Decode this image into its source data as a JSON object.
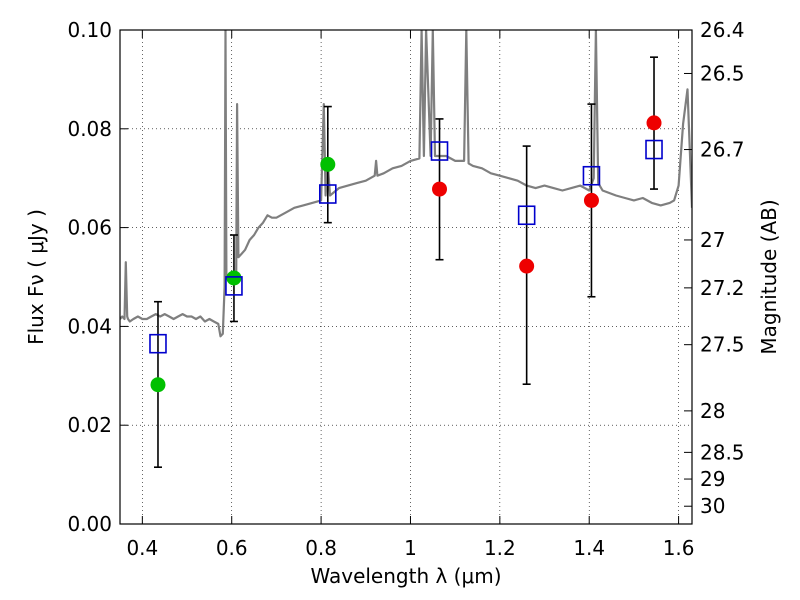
{
  "chart_data": {
    "type": "scatter",
    "title": "",
    "xlabel": "Wavelength  λ (μm)",
    "ylabel": "Flux  Fν  ( μJy )",
    "ylabel_right": "Magnitude (AB)",
    "xlim": [
      0.35,
      1.63
    ],
    "ylim": [
      0.0,
      0.1
    ],
    "grid": true,
    "grid_style": "dotted",
    "x_ticks": [
      0.4,
      0.6,
      0.8,
      1.0,
      1.2,
      1.4,
      1.6
    ],
    "x_tick_labels": [
      "0.4",
      "0.6",
      "0.8",
      "1",
      "1.2",
      "1.4",
      "1.6"
    ],
    "y_ticks": [
      0.0,
      0.02,
      0.04,
      0.06,
      0.08,
      0.1
    ],
    "y_tick_labels": [
      "0.00",
      "0.02",
      "0.04",
      "0.06",
      "0.08",
      "0.10"
    ],
    "right_ticks": [
      {
        "flux": 0.1,
        "label": "26.4"
      },
      {
        "flux": 0.0912,
        "label": "26.5"
      },
      {
        "flux": 0.0758,
        "label": "26.7"
      },
      {
        "flux": 0.0575,
        "label": "27"
      },
      {
        "flux": 0.0478,
        "label": "27.2"
      },
      {
        "flux": 0.0363,
        "label": "27.5"
      },
      {
        "flux": 0.0229,
        "label": "28"
      },
      {
        "flux": 0.0145,
        "label": "28.5"
      },
      {
        "flux": 0.0091,
        "label": "29"
      },
      {
        "flux": 0.0036,
        "label": "30"
      }
    ],
    "colors": {
      "spectrum": "#7f7f7f",
      "model": "#0000cc",
      "green": "#00c000",
      "red": "#ee0000",
      "errorbar": "#000000"
    },
    "spectrum": {
      "x": [
        0.35,
        0.355,
        0.36,
        0.363,
        0.366,
        0.368,
        0.372,
        0.38,
        0.39,
        0.4,
        0.41,
        0.42,
        0.43,
        0.44,
        0.45,
        0.46,
        0.47,
        0.48,
        0.49,
        0.5,
        0.51,
        0.52,
        0.53,
        0.54,
        0.55,
        0.56,
        0.57,
        0.575,
        0.58,
        0.584,
        0.586,
        0.588,
        0.592,
        0.6,
        0.61,
        0.612,
        0.615,
        0.62,
        0.63,
        0.64,
        0.65,
        0.66,
        0.67,
        0.68,
        0.69,
        0.7,
        0.72,
        0.74,
        0.76,
        0.78,
        0.8,
        0.806,
        0.81,
        0.815,
        0.82,
        0.84,
        0.86,
        0.88,
        0.9,
        0.92,
        0.923,
        0.926,
        0.94,
        0.96,
        0.98,
        1.0,
        1.02,
        1.025,
        1.03,
        1.035,
        1.045,
        1.05,
        1.055,
        1.06,
        1.08,
        1.1,
        1.12,
        1.125,
        1.13,
        1.14,
        1.16,
        1.18,
        1.2,
        1.22,
        1.24,
        1.26,
        1.28,
        1.3,
        1.32,
        1.34,
        1.36,
        1.38,
        1.4,
        1.41,
        1.415,
        1.42,
        1.43,
        1.46,
        1.48,
        1.5,
        1.52,
        1.54,
        1.56,
        1.58,
        1.59,
        1.6,
        1.61,
        1.62,
        1.63
      ],
      "y": [
        0.0415,
        0.042,
        0.0415,
        0.053,
        0.042,
        0.0415,
        0.041,
        0.0415,
        0.042,
        0.0415,
        0.0415,
        0.042,
        0.0425,
        0.042,
        0.0425,
        0.042,
        0.0415,
        0.042,
        0.0425,
        0.042,
        0.042,
        0.0415,
        0.042,
        0.041,
        0.0415,
        0.041,
        0.0405,
        0.038,
        0.0385,
        0.048,
        0.1,
        0.05,
        0.0495,
        0.0505,
        0.05,
        0.085,
        0.054,
        0.0545,
        0.0555,
        0.0575,
        0.0585,
        0.06,
        0.061,
        0.0625,
        0.062,
        0.062,
        0.063,
        0.064,
        0.0645,
        0.065,
        0.0655,
        0.085,
        0.0665,
        0.073,
        0.0665,
        0.068,
        0.0685,
        0.069,
        0.0695,
        0.0705,
        0.0735,
        0.0705,
        0.071,
        0.072,
        0.0725,
        0.0735,
        0.074,
        0.1,
        0.0745,
        0.1,
        0.0745,
        0.1,
        0.0745,
        0.0745,
        0.0745,
        0.0735,
        0.0735,
        0.1,
        0.073,
        0.0725,
        0.072,
        0.071,
        0.0705,
        0.07,
        0.0695,
        0.0685,
        0.068,
        0.0685,
        0.068,
        0.0675,
        0.068,
        0.0685,
        0.0675,
        0.07,
        0.1,
        0.069,
        0.0675,
        0.0665,
        0.066,
        0.0655,
        0.066,
        0.065,
        0.0645,
        0.065,
        0.0655,
        0.0685,
        0.081,
        0.088,
        0.064
      ]
    },
    "series": [
      {
        "marker": "square",
        "color": "#0000cc",
        "x": [
          0.435,
          0.605,
          0.815,
          1.065,
          1.26,
          1.405,
          1.545
        ],
        "y": [
          0.0365,
          0.0482,
          0.0668,
          0.0755,
          0.0625,
          0.0705,
          0.0758
        ]
      },
      {
        "marker": "circle",
        "color": "#00c000",
        "x": [
          0.435,
          0.605,
          0.815
        ],
        "y": [
          0.0282,
          0.0498,
          0.0728
        ]
      },
      {
        "marker": "circle",
        "color": "#ee0000",
        "x": [
          1.065,
          1.26,
          1.405,
          1.545
        ],
        "y": [
          0.0678,
          0.0522,
          0.0655,
          0.0812
        ]
      }
    ],
    "errorbars": [
      {
        "x": 0.435,
        "low": 0.0115,
        "high": 0.045
      },
      {
        "x": 0.605,
        "low": 0.041,
        "high": 0.0585
      },
      {
        "x": 0.815,
        "low": 0.061,
        "high": 0.0845
      },
      {
        "x": 1.065,
        "low": 0.0535,
        "high": 0.082
      },
      {
        "x": 1.26,
        "low": 0.0283,
        "high": 0.0765
      },
      {
        "x": 1.405,
        "low": 0.046,
        "high": 0.085
      },
      {
        "x": 1.545,
        "low": 0.0678,
        "high": 0.0945
      }
    ]
  }
}
